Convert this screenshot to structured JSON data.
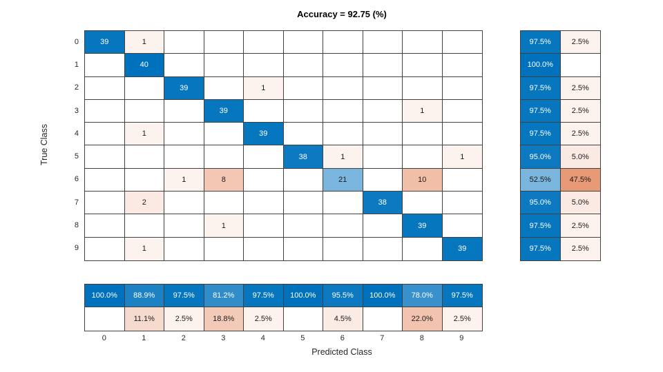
{
  "title": "Accuracy = 92.75 (%)",
  "x_label": "Predicted Class",
  "y_label": "True Class",
  "colors": {
    "diagonal_blue": "#0072BD",
    "off_diagonal_orange": "#D95319",
    "grid_line": "#404040",
    "dark_text": "#1a1a1a",
    "light_text": "#ffffff"
  },
  "chart_data": {
    "type": "heatmap",
    "subtype": "confusion-matrix",
    "title": "Accuracy = 92.75 (%)",
    "xlabel": "Predicted Class",
    "ylabel": "True Class",
    "classes": [
      "0",
      "1",
      "2",
      "3",
      "4",
      "5",
      "6",
      "7",
      "8",
      "9"
    ],
    "matrix": [
      [
        39,
        1,
        0,
        0,
        0,
        0,
        0,
        0,
        0,
        0
      ],
      [
        0,
        40,
        0,
        0,
        0,
        0,
        0,
        0,
        0,
        0
      ],
      [
        0,
        0,
        39,
        0,
        1,
        0,
        0,
        0,
        0,
        0
      ],
      [
        0,
        0,
        0,
        39,
        0,
        0,
        0,
        0,
        1,
        0
      ],
      [
        0,
        1,
        0,
        0,
        39,
        0,
        0,
        0,
        0,
        0
      ],
      [
        0,
        0,
        0,
        0,
        0,
        38,
        1,
        0,
        0,
        1
      ],
      [
        0,
        0,
        1,
        8,
        0,
        0,
        21,
        0,
        10,
        0
      ],
      [
        0,
        2,
        0,
        0,
        0,
        0,
        0,
        38,
        0,
        0
      ],
      [
        0,
        0,
        0,
        1,
        0,
        0,
        0,
        0,
        39,
        0
      ],
      [
        0,
        1,
        0,
        0,
        0,
        0,
        0,
        0,
        0,
        39
      ]
    ],
    "row_summary": {
      "recall": [
        "97.5%",
        "100.0%",
        "97.5%",
        "97.5%",
        "97.5%",
        "95.0%",
        "52.5%",
        "95.0%",
        "97.5%",
        "97.5%"
      ],
      "miss_rate": [
        "2.5%",
        "",
        "2.5%",
        "2.5%",
        "2.5%",
        "5.0%",
        "47.5%",
        "5.0%",
        "2.5%",
        "2.5%"
      ]
    },
    "col_summary": {
      "precision": [
        "100.0%",
        "88.9%",
        "97.5%",
        "81.2%",
        "97.5%",
        "100.0%",
        "95.5%",
        "100.0%",
        "78.0%",
        "97.5%"
      ],
      "false_discovery_rate": [
        "",
        "11.1%",
        "2.5%",
        "18.8%",
        "2.5%",
        "",
        "4.5%",
        "",
        "22.0%",
        "2.5%"
      ]
    }
  }
}
